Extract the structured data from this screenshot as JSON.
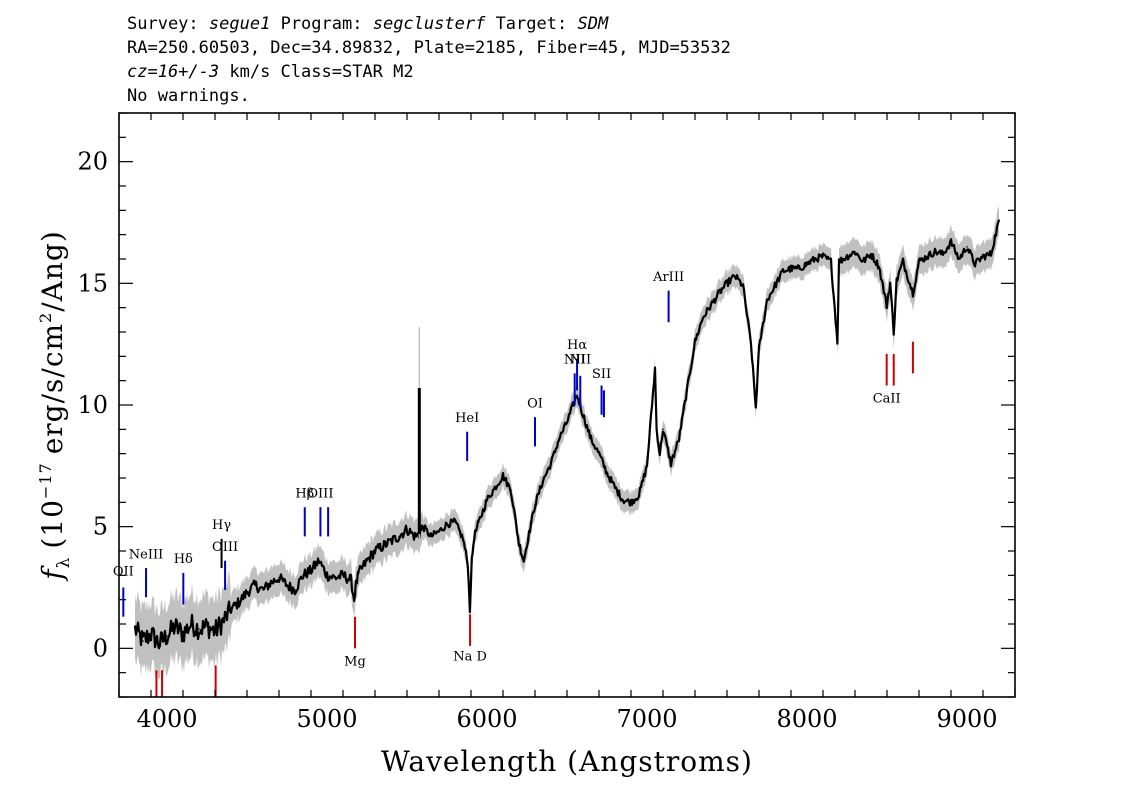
{
  "header": {
    "line1": {
      "survey_label": "Survey:",
      "survey": "segue1",
      "program_label": "Program:",
      "program": "segclusterf",
      "target_label": "Target:",
      "target": "SDM"
    },
    "line2": "RA=250.60503, Dec=34.89832, Plate=2185, Fiber=45, MJD=53532",
    "line3": {
      "cz": "cz=16+/-3",
      "rest": "km/s Class=STAR M2"
    },
    "line4": "No warnings."
  },
  "colors": {
    "flux": "#000000",
    "error": "#c0c0c0",
    "emission": "#0000c8",
    "absorption": "#d00000",
    "sky": "#000000"
  },
  "chart_data": {
    "type": "line",
    "xlabel": "Wavelength (Angstroms)",
    "ylabel": "f_λ (10^-17 erg/s/cm^2/Ang)",
    "ylabel_parts": {
      "f": "f",
      "sub": "λ",
      "pre": "(10",
      "exp": "−17",
      "mid": "erg/s/cm",
      "exp2": "2",
      "post": "/Ang)"
    },
    "xlim": [
      3700,
      9300
    ],
    "ylim": [
      -2,
      22
    ],
    "xticks": [
      4000,
      5000,
      6000,
      7000,
      8000,
      9000
    ],
    "yticks": [
      0,
      5,
      10,
      15,
      20
    ],
    "grid": false,
    "series": [
      {
        "x": [
          3800,
          3850,
          3900,
          3950,
          4000,
          4050,
          4100,
          4150,
          4200,
          4250,
          4300,
          4350,
          4400,
          4450,
          4500,
          4550,
          4600,
          4650,
          4700,
          4750,
          4800,
          4850,
          4900,
          4950,
          5000,
          5050,
          5100,
          5150,
          5170,
          5180,
          5200,
          5250,
          5300,
          5350,
          5400,
          5450,
          5500,
          5550,
          5577,
          5600,
          5650,
          5700,
          5750,
          5800,
          5850,
          5880,
          5893,
          5905,
          5920,
          5950,
          6000,
          6050,
          6100,
          6150,
          6200,
          6230,
          6250,
          6300,
          6350,
          6400,
          6450,
          6500,
          6550,
          6563,
          6600,
          6650,
          6700,
          6750,
          6800,
          6850,
          6900,
          6950,
          7000,
          7050,
          7060,
          7080,
          7100,
          7150,
          7200,
          7250,
          7300,
          7350,
          7400,
          7450,
          7500,
          7550,
          7600,
          7650,
          7680,
          7700,
          7750,
          7800,
          7850,
          7900,
          7950,
          8000,
          8050,
          8100,
          8150,
          8190,
          8200,
          8250,
          8300,
          8350,
          8400,
          8450,
          8498,
          8520,
          8542,
          8560,
          8600,
          8662,
          8700,
          8750,
          8800,
          8850,
          8900,
          8950,
          9000,
          9050,
          9100,
          9150,
          9200
        ],
        "y": [
          0.8,
          0.3,
          0.6,
          0.2,
          0.5,
          0.9,
          0.6,
          1.0,
          0.8,
          0.9,
          0.7,
          1.1,
          1.6,
          1.9,
          2.3,
          2.6,
          2.4,
          2.7,
          2.9,
          2.6,
          2.4,
          3.0,
          3.2,
          3.6,
          3.0,
          2.9,
          3.0,
          2.8,
          2.0,
          2.6,
          3.1,
          3.6,
          4.0,
          4.2,
          4.4,
          4.6,
          4.9,
          4.6,
          4.7,
          5.0,
          4.6,
          4.8,
          5.1,
          5.2,
          4.5,
          3.5,
          1.6,
          3.6,
          4.6,
          5.2,
          6.1,
          6.6,
          7.1,
          6.5,
          4.3,
          3.6,
          4.3,
          5.9,
          6.9,
          7.6,
          8.6,
          9.3,
          10.2,
          10.4,
          9.6,
          8.6,
          8.0,
          7.2,
          6.6,
          6.1,
          6.0,
          6.3,
          7.5,
          11.5,
          9.0,
          8.0,
          9.0,
          7.6,
          8.6,
          10.6,
          12.6,
          13.6,
          14.1,
          14.6,
          15.0,
          15.3,
          14.9,
          12.5,
          9.9,
          12.3,
          14.3,
          14.9,
          15.5,
          15.6,
          15.6,
          15.8,
          16.0,
          16.1,
          15.9,
          12.6,
          15.9,
          16.1,
          16.3,
          15.9,
          16.2,
          15.7,
          14.1,
          15.0,
          13.0,
          15.1,
          15.9,
          14.6,
          15.9,
          16.1,
          16.3,
          16.2,
          16.7,
          16.0,
          16.5,
          15.8,
          16.1,
          16.2,
          17.6
        ]
      }
    ],
    "spikes": [
      {
        "x": 5577,
        "from": 4.7,
        "to": 10.7
      }
    ],
    "emission_lines": [
      {
        "label": "OII",
        "x": 3727,
        "y_low": 1.3,
        "y_high": 2.5,
        "label_y": 3.0,
        "color": "blue"
      },
      {
        "label": "NeIII",
        "x": 3869,
        "y_low": 2.1,
        "y_high": 3.3,
        "label_y": 3.7,
        "color": "blue"
      },
      {
        "label": "Hδ",
        "x": 4102,
        "y_low": 1.8,
        "y_high": 3.1,
        "label_y": 3.5,
        "color": "blue"
      },
      {
        "label": "Hγ",
        "x": 4341,
        "y_low": 3.3,
        "y_high": 4.5,
        "label_y": 4.9,
        "color": "black"
      },
      {
        "label": "OIII",
        "x": 4363,
        "y_low": 2.4,
        "y_high": 3.6,
        "label_y": 4.0,
        "color": "blue"
      },
      {
        "label": "Hβ",
        "x": 4861,
        "y_low": 4.6,
        "y_high": 5.8,
        "label_y": 6.2,
        "color": "blue"
      },
      {
        "label": "OIII",
        "x": 4959,
        "y_low": 4.6,
        "y_high": 5.8,
        "label_y": 6.2,
        "color": "blue"
      },
      {
        "label": "",
        "x": 5007,
        "y_low": 4.6,
        "y_high": 5.8,
        "label_y": 6.2,
        "color": "blue"
      },
      {
        "label": "HeI",
        "x": 5876,
        "y_low": 7.7,
        "y_high": 8.9,
        "label_y": 9.3,
        "color": "blue"
      },
      {
        "label": "OI",
        "x": 6300,
        "y_low": 8.3,
        "y_high": 9.5,
        "label_y": 9.9,
        "color": "blue"
      },
      {
        "label": "NII",
        "x": 6548,
        "y_low": 10.0,
        "y_high": 11.3,
        "label_y": 11.7,
        "color": "blue"
      },
      {
        "label": "Hα",
        "x": 6563,
        "y_low": 10.6,
        "y_high": 11.9,
        "label_y": 12.3,
        "color": "blue"
      },
      {
        "label": "NII",
        "x": 6583,
        "y_low": 9.9,
        "y_high": 11.2,
        "label_y": 11.7,
        "color": "blue"
      },
      {
        "label": "SII",
        "x": 6716,
        "y_low": 9.6,
        "y_high": 10.8,
        "label_y": 11.1,
        "color": "blue"
      },
      {
        "label": "",
        "x": 6731,
        "y_low": 9.5,
        "y_high": 10.6,
        "label_y": 11.1,
        "color": "blue"
      },
      {
        "label": "ArIII",
        "x": 7135,
        "y_low": 13.4,
        "y_high": 14.7,
        "label_y": 15.1,
        "color": "blue"
      }
    ],
    "absorption_lines": [
      {
        "label": "",
        "x": 3934,
        "y_low": -2.2,
        "y_high": -0.9,
        "label_y": null
      },
      {
        "label": "",
        "x": 3969,
        "y_low": -2.2,
        "y_high": -0.9,
        "label_y": null
      },
      {
        "label": "",
        "x": 4304,
        "y_low": -2.2,
        "y_high": -0.7,
        "label_y": null
      },
      {
        "label": "Mg",
        "x": 5175,
        "y_low": 0.0,
        "y_high": 1.3,
        "label_y": -0.7
      },
      {
        "label": "Na D",
        "x": 5894,
        "y_low": 0.1,
        "y_high": 1.4,
        "label_y": -0.5
      },
      {
        "label": "CaII",
        "x": 8498,
        "y_low": 10.8,
        "y_high": 12.1,
        "label_y": 10.1
      },
      {
        "label": "",
        "x": 8542,
        "y_low": 10.8,
        "y_high": 12.1,
        "label_y": null
      },
      {
        "label": "",
        "x": 8662,
        "y_low": 11.3,
        "y_high": 12.6,
        "label_y": null
      }
    ]
  }
}
